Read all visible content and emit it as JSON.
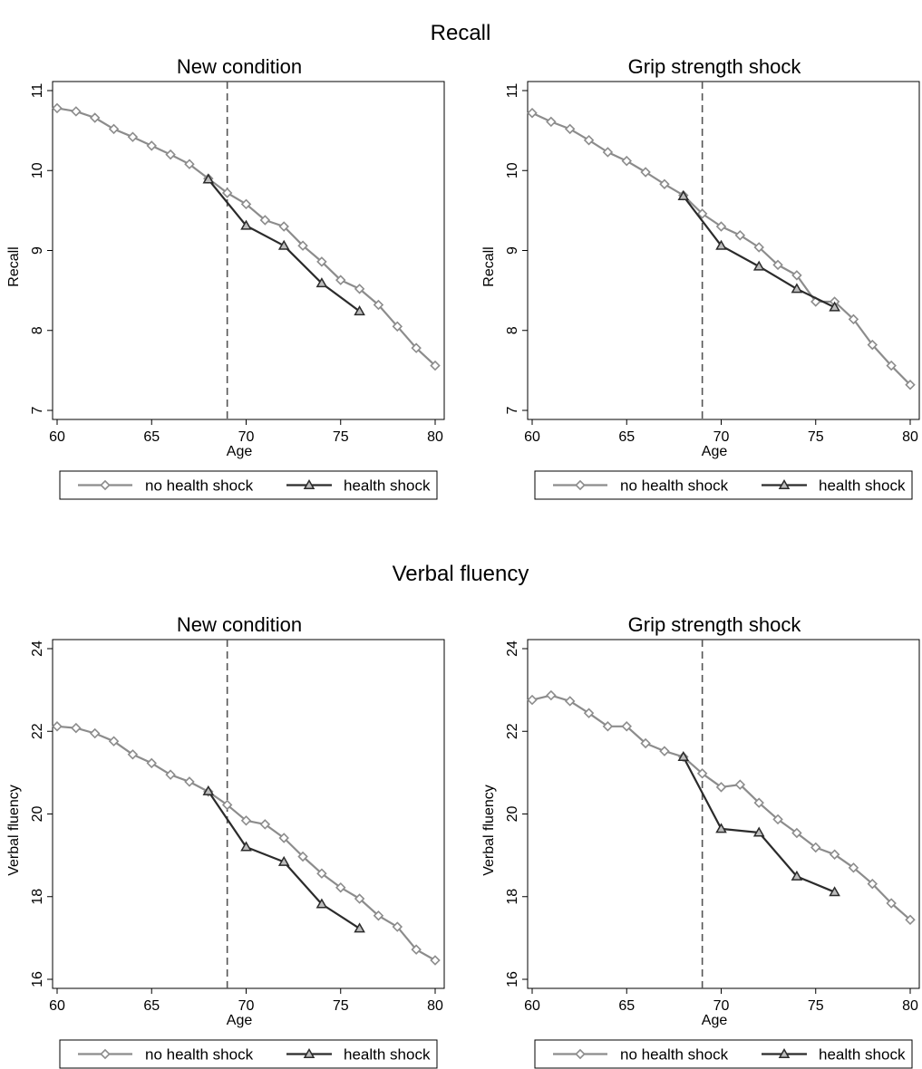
{
  "sections": [
    {
      "title": "Recall"
    },
    {
      "title": "Verbal fluency"
    }
  ],
  "legend": {
    "no_shock": "no health shock",
    "shock": "health shock"
  },
  "colors": {
    "no_shock": "#8c8c8c",
    "shock": "#2b2b2b",
    "vline": "#555555",
    "axis": "#000000"
  },
  "chart_data": [
    {
      "type": "line",
      "title": "New condition",
      "xlabel": "Age",
      "ylabel": "Recall",
      "xlim": [
        60,
        80
      ],
      "ylim": [
        7,
        11
      ],
      "xticks": [
        "60",
        "65",
        "70",
        "75",
        "80"
      ],
      "yticks": [
        "7",
        "8",
        "9",
        "10",
        "11"
      ],
      "vline": 69,
      "series": [
        {
          "name": "no health shock",
          "marker": "diamond",
          "x": [
            60,
            61,
            62,
            63,
            64,
            65,
            66,
            67,
            68,
            69,
            70,
            71,
            72,
            73,
            74,
            75,
            76,
            77,
            78,
            79,
            80
          ],
          "y": [
            10.78,
            10.74,
            10.66,
            10.52,
            10.42,
            10.31,
            10.2,
            10.08,
            9.9,
            9.72,
            9.58,
            9.38,
            9.3,
            9.06,
            8.86,
            8.63,
            8.52,
            8.32,
            8.05,
            7.78,
            7.56
          ]
        },
        {
          "name": "health shock",
          "marker": "triangle",
          "x": [
            68,
            70,
            72,
            74,
            76
          ],
          "y": [
            9.89,
            9.31,
            9.06,
            8.59,
            8.24
          ]
        }
      ]
    },
    {
      "type": "line",
      "title": "Grip strength shock",
      "xlabel": "Age",
      "ylabel": "Recall",
      "xlim": [
        60,
        80
      ],
      "ylim": [
        7,
        11
      ],
      "xticks": [
        "60",
        "65",
        "70",
        "75",
        "80"
      ],
      "yticks": [
        "7",
        "8",
        "9",
        "10",
        "11"
      ],
      "vline": 69,
      "series": [
        {
          "name": "no health shock",
          "marker": "diamond",
          "x": [
            60,
            61,
            62,
            63,
            64,
            65,
            66,
            67,
            68,
            69,
            70,
            71,
            72,
            73,
            74,
            75,
            76,
            77,
            78,
            79,
            80
          ],
          "y": [
            10.72,
            10.61,
            10.52,
            10.38,
            10.23,
            10.12,
            9.98,
            9.83,
            9.69,
            9.46,
            9.3,
            9.19,
            9.04,
            8.82,
            8.69,
            8.36,
            8.36,
            8.14,
            7.82,
            7.56,
            7.32
          ]
        },
        {
          "name": "health shock",
          "marker": "triangle",
          "x": [
            68,
            70,
            72,
            74,
            76
          ],
          "y": [
            9.68,
            9.06,
            8.8,
            8.52,
            8.29
          ]
        }
      ]
    },
    {
      "type": "line",
      "title": "New condition",
      "xlabel": "Age",
      "ylabel": "Verbal fluency",
      "xlim": [
        60,
        80
      ],
      "ylim": [
        16,
        24
      ],
      "xticks": [
        "60",
        "65",
        "70",
        "75",
        "80"
      ],
      "yticks": [
        "16",
        "18",
        "20",
        "22",
        "24"
      ],
      "vline": 69,
      "series": [
        {
          "name": "no health shock",
          "marker": "diamond",
          "x": [
            60,
            61,
            62,
            63,
            64,
            65,
            66,
            67,
            68,
            69,
            70,
            71,
            72,
            73,
            74,
            75,
            76,
            77,
            78,
            79,
            80
          ],
          "y": [
            22.12,
            22.08,
            21.95,
            21.76,
            21.44,
            21.23,
            20.95,
            20.78,
            20.54,
            20.22,
            19.84,
            19.75,
            19.42,
            18.97,
            18.56,
            18.22,
            17.95,
            17.54,
            17.27,
            16.72,
            16.46
          ]
        },
        {
          "name": "health shock",
          "marker": "triangle",
          "x": [
            68,
            70,
            72,
            74,
            76
          ],
          "y": [
            20.55,
            19.2,
            18.84,
            17.82,
            17.23
          ]
        }
      ]
    },
    {
      "type": "line",
      "title": "Grip strength shock",
      "xlabel": "Age",
      "ylabel": "Verbal fluency",
      "xlim": [
        60,
        80
      ],
      "ylim": [
        16,
        24
      ],
      "xticks": [
        "60",
        "65",
        "70",
        "75",
        "80"
      ],
      "yticks": [
        "16",
        "18",
        "20",
        "22",
        "24"
      ],
      "vline": 69,
      "series": [
        {
          "name": "no health shock",
          "marker": "diamond",
          "x": [
            60,
            61,
            62,
            63,
            64,
            65,
            66,
            67,
            68,
            69,
            70,
            71,
            72,
            73,
            74,
            75,
            76,
            77,
            78,
            79,
            80
          ],
          "y": [
            22.76,
            22.87,
            22.73,
            22.44,
            22.12,
            22.12,
            21.71,
            21.52,
            21.38,
            20.98,
            20.65,
            20.71,
            20.27,
            19.87,
            19.54,
            19.19,
            19.02,
            18.7,
            18.31,
            17.84,
            17.44
          ]
        },
        {
          "name": "health shock",
          "marker": "triangle",
          "x": [
            68,
            70,
            72,
            74,
            76
          ],
          "y": [
            21.38,
            19.64,
            19.55,
            18.49,
            18.11
          ]
        }
      ]
    }
  ]
}
